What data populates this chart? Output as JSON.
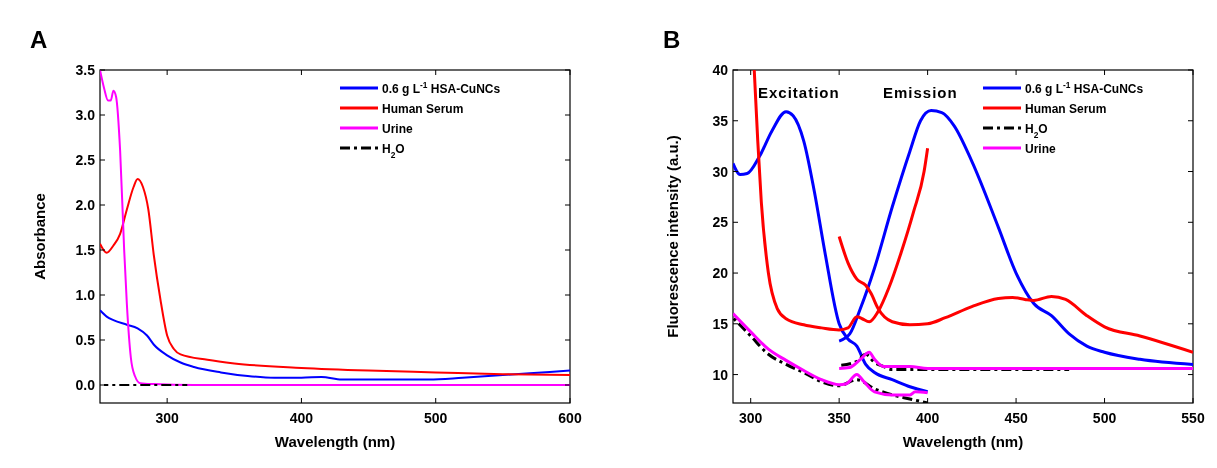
{
  "chart_data": [
    {
      "type": "line",
      "title": "A",
      "xlabel": "Wavelength (nm)",
      "ylabel": "Absorbance",
      "xlim": [
        250,
        600
      ],
      "xticks": [
        300,
        400,
        500,
        600
      ],
      "ylim": [
        -0.2,
        3.5
      ],
      "yticks": [
        {
          "value": 0,
          "label": "0.0"
        },
        {
          "value": 0.5,
          "label": "0.5"
        },
        {
          "value": 1,
          "label": "1.0"
        },
        {
          "value": 1.5,
          "label": "1.5"
        },
        {
          "value": 2,
          "label": "2.0"
        },
        {
          "value": 2.5,
          "label": "2.5"
        },
        {
          "value": 3,
          "label": "3.0"
        },
        {
          "value": 3.5,
          "label": "3.5"
        }
      ],
      "legend": "top right",
      "series": [
        {
          "name": "0.6 g L$^{-1}$ HSA-CuNCs",
          "color": "#0000ff",
          "x": [
            250,
            255,
            260,
            270,
            278,
            285,
            290,
            300,
            310,
            320,
            340,
            360,
            380,
            400,
            415,
            430,
            460,
            495,
            520,
            550,
            570,
            600
          ],
          "values": [
            0.83,
            0.76,
            0.72,
            0.67,
            0.63,
            0.55,
            0.45,
            0.33,
            0.25,
            0.2,
            0.14,
            0.1,
            0.08,
            0.08,
            0.09,
            0.06,
            0.06,
            0.06,
            0.08,
            0.11,
            0.13,
            0.16
          ]
        },
        {
          "name": "Human Serum",
          "color": "#ff0000",
          "x": [
            250,
            255,
            260,
            265,
            270,
            275,
            278,
            282,
            286,
            290,
            295,
            300,
            305,
            310,
            330,
            350,
            400,
            450,
            500,
            550,
            600
          ],
          "values": [
            1.57,
            1.47,
            1.55,
            1.68,
            1.95,
            2.2,
            2.29,
            2.2,
            1.95,
            1.45,
            0.95,
            0.55,
            0.4,
            0.34,
            0.28,
            0.24,
            0.19,
            0.16,
            0.14,
            0.12,
            0.11
          ]
        },
        {
          "name": "Urine",
          "color": "#ff00ff",
          "x": [
            250,
            253,
            256,
            258,
            260,
            262,
            265,
            268,
            270,
            273,
            276,
            280,
            290,
            320,
            600
          ],
          "values": [
            3.5,
            3.3,
            3.16,
            3.16,
            3.27,
            3.2,
            2.6,
            1.5,
            0.9,
            0.3,
            0.1,
            0.02,
            0.01,
            0,
            0
          ]
        },
        {
          "name": "H$_{2}$O",
          "color": "#000000",
          "line_style": "dashdot",
          "x": [
            253,
            315
          ],
          "values": [
            0,
            0
          ]
        }
      ]
    },
    {
      "type": "line",
      "title": "B",
      "xlabel": "Wavelength (nm)",
      "ylabel": "Fluorescence intensity (a.u.)",
      "annotations": [
        "Excitation",
        "Emission"
      ],
      "xlim": [
        290,
        550
      ],
      "xticks": [
        300,
        350,
        400,
        450,
        500,
        550
      ],
      "ylim": [
        7.2,
        40
      ],
      "yticks": [
        10,
        15,
        20,
        25,
        30,
        35,
        40
      ],
      "legend": "top right",
      "series": [
        {
          "name": "0.6 g L$^{-1}$ HSA-CuNCs",
          "color": "#0000ff",
          "x": [
            290,
            294,
            298,
            305,
            312,
            320,
            324,
            330,
            336,
            342,
            350,
            355,
            360,
            365,
            370,
            380,
            390,
            400
          ],
          "values": [
            30.8,
            29.7,
            29.8,
            31.5,
            34,
            35.9,
            35.5,
            33,
            28,
            22,
            15,
            13.5,
            12.8,
            11,
            10.2,
            9.5,
            8.8,
            8.3
          ]
        },
        {
          "color": "#0000ff",
          "x": [
            350,
            356,
            362,
            370,
            380,
            390,
            396,
            402,
            408,
            415,
            425,
            440,
            450,
            460,
            470,
            480,
            490,
            500,
            520,
            550
          ],
          "values": [
            13.3,
            14,
            16.5,
            20.5,
            26.5,
            32,
            35,
            36,
            35.8,
            34.5,
            31,
            24.5,
            20,
            17,
            15.8,
            14,
            12.8,
            12.2,
            11.5,
            11
          ]
        },
        {
          "name": "Human Serum",
          "color": "#ff0000",
          "x": [
            302,
            304,
            306,
            310,
            315,
            320,
            330,
            340,
            350,
            355,
            360,
            363,
            367,
            372,
            378,
            385,
            392,
            398,
            400
          ],
          "values": [
            40,
            33,
            27,
            20,
            16.5,
            15.5,
            14.9,
            14.6,
            14.4,
            14.6,
            15.7,
            15.5,
            15.2,
            16.2,
            18.5,
            22,
            26,
            30,
            32.3
          ]
        },
        {
          "color": "#ff0000",
          "x": [
            350,
            355,
            360,
            365,
            368,
            372,
            380,
            390,
            400,
            410,
            425,
            440,
            448,
            455,
            460,
            470,
            478,
            490,
            500,
            520,
            550
          ],
          "values": [
            23.6,
            21,
            19.4,
            18.8,
            18,
            16.5,
            15.2,
            14.9,
            15,
            15.6,
            16.7,
            17.5,
            17.6,
            17.4,
            17.3,
            17.7,
            17.4,
            15.8,
            14.7,
            13.8,
            12.2
          ]
        },
        {
          "name": "H$_{2}$O",
          "color": "#000000",
          "line_style": "dashdot",
          "x": [
            290,
            300,
            310,
            320,
            330,
            340,
            350,
            360,
            370,
            380,
            390,
            400
          ],
          "values": [
            15.6,
            13.8,
            12,
            11,
            10.2,
            9.3,
            8.9,
            9.5,
            8.6,
            8,
            7.6,
            7.2
          ]
        },
        {
          "color": "#000000",
          "line_style": "dashdot",
          "x": [
            350,
            360,
            365,
            370,
            375,
            380,
            400,
            480
          ],
          "values": [
            10.9,
            11.3,
            12,
            11.2,
            10.8,
            10.5,
            10.5,
            10.5
          ]
        },
        {
          "name": "Urine",
          "color": "#ff00ff",
          "x": [
            290,
            300,
            310,
            320,
            330,
            340,
            350,
            354,
            360,
            364,
            370,
            380,
            390,
            393,
            400
          ],
          "values": [
            16,
            14.2,
            12.5,
            11.4,
            10.4,
            9.5,
            9,
            9.1,
            10,
            9.3,
            8.3,
            8,
            8,
            8.3,
            8.2
          ]
        },
        {
          "color": "#ff00ff",
          "x": [
            350,
            356,
            362,
            367,
            370,
            375,
            390,
            400,
            550
          ],
          "values": [
            10.6,
            10.7,
            11.5,
            12.2,
            11.5,
            10.8,
            10.8,
            10.6,
            10.6
          ]
        }
      ]
    }
  ]
}
